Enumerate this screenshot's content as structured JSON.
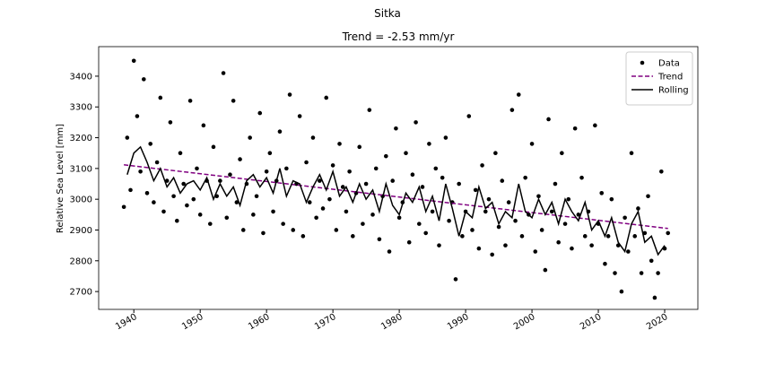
{
  "chart_data": {
    "type": "line",
    "suptitle": "Sitka",
    "title": "Trend = -2.53 mm/yr",
    "ylabel": "Relative Sea Level [mm]",
    "xlim": [
      1934.7,
      2025.0
    ],
    "ylim": [
      2642,
      3496
    ],
    "xticks": [
      1940,
      1950,
      1960,
      1970,
      1980,
      1990,
      2000,
      2010,
      2020
    ],
    "yticks": [
      2700,
      2800,
      2900,
      3000,
      3100,
      3200,
      3300,
      3400
    ],
    "legend": "upper right",
    "series": [
      {
        "name": "Data",
        "color": "#000000",
        "style": "markers",
        "x": [
          1938.5,
          1939,
          1939.5,
          1940,
          1940.5,
          1941,
          1941.5,
          1942,
          1942.5,
          1943,
          1943.5,
          1944,
          1944.5,
          1945,
          1945.5,
          1946,
          1946.5,
          1947,
          1947.5,
          1948,
          1948.5,
          1949,
          1949.5,
          1950,
          1950.5,
          1951,
          1951.5,
          1952,
          1952.5,
          1953,
          1953.5,
          1954,
          1954.5,
          1955,
          1955.5,
          1956,
          1956.5,
          1957,
          1957.5,
          1958,
          1958.5,
          1959,
          1959.5,
          1960,
          1960.5,
          1961,
          1961.5,
          1962,
          1962.5,
          1963,
          1963.5,
          1964,
          1964.5,
          1965,
          1965.5,
          1966,
          1966.5,
          1967,
          1967.5,
          1968,
          1968.5,
          1969,
          1969.5,
          1970,
          1970.5,
          1971,
          1971.5,
          1972,
          1972.5,
          1973,
          1973.5,
          1974,
          1974.5,
          1975,
          1975.5,
          1976,
          1976.5,
          1977,
          1977.5,
          1978,
          1978.5,
          1979,
          1979.5,
          1980,
          1980.5,
          1981,
          1981.5,
          1982,
          1982.5,
          1983,
          1983.5,
          1984,
          1984.5,
          1985,
          1985.5,
          1986,
          1986.5,
          1987,
          1987.5,
          1988,
          1988.5,
          1989,
          1989.5,
          1990,
          1990.5,
          1991,
          1991.5,
          1992,
          1992.5,
          1993,
          1993.5,
          1994,
          1994.5,
          1995,
          1995.5,
          1996,
          1996.5,
          1997,
          1997.5,
          1998,
          1998.5,
          1999,
          1999.5,
          2000,
          2000.5,
          2001,
          2001.5,
          2002,
          2002.5,
          2003,
          2003.5,
          2004,
          2004.5,
          2005,
          2005.5,
          2006,
          2006.5,
          2007,
          2007.5,
          2008,
          2008.5,
          2009,
          2009.5,
          2010,
          2010.5,
          2011,
          2011.5,
          2012,
          2012.5,
          2013,
          2013.5,
          2014,
          2014.5,
          2015,
          2015.5,
          2016,
          2016.5,
          2017,
          2017.5,
          2018,
          2018.5,
          2019,
          2019.5,
          2020,
          2020.5
        ],
        "values": [
          2975,
          3200,
          3030,
          3450,
          3270,
          3090,
          3390,
          3020,
          3180,
          2990,
          3120,
          3330,
          2960,
          3060,
          3250,
          3010,
          2930,
          3150,
          3050,
          2980,
          3320,
          3000,
          3100,
          2950,
          3240,
          3060,
          2920,
          3170,
          3010,
          3060,
          3410,
          2940,
          3080,
          3320,
          2990,
          3130,
          2900,
          3050,
          3200,
          2950,
          3010,
          3280,
          2890,
          3090,
          3150,
          2960,
          3060,
          3220,
          2920,
          3100,
          3340,
          2900,
          3050,
          3270,
          2880,
          3120,
          2990,
          3200,
          2940,
          3060,
          2970,
          3330,
          3000,
          3110,
          2900,
          3180,
          3040,
          2960,
          3090,
          2880,
          3020,
          3170,
          2920,
          3050,
          3290,
          2950,
          3100,
          2870,
          3010,
          3140,
          2830,
          3060,
          3230,
          2940,
          2990,
          3150,
          2860,
          3080,
          3250,
          2920,
          3040,
          2890,
          3180,
          2960,
          3100,
          2850,
          3070,
          3200,
          2930,
          2990,
          2740,
          3050,
          2880,
          2960,
          3270,
          2900,
          3030,
          2840,
          3110,
          2960,
          3000,
          2820,
          3150,
          2910,
          3060,
          2850,
          2990,
          3290,
          2930,
          3340,
          2880,
          3070,
          2950,
          3180,
          2830,
          3010,
          2900,
          2770,
          3260,
          2960,
          3050,
          2860,
          3150,
          2920,
          3000,
          2840,
          3230,
          2950,
          3070,
          2880,
          2960,
          2850,
          3240,
          2920,
          3020,
          2790,
          2880,
          3000,
          2760,
          2850,
          2700,
          2940,
          2830,
          3150,
          2880,
          2970,
          2760,
          2890,
          3010,
          2800,
          2680,
          2760,
          3090,
          2840,
          2890
        ]
      },
      {
        "name": "Trend",
        "color": "#800080",
        "style": "dashed",
        "x": [
          1938.5,
          2020.5
        ],
        "values": [
          3112,
          2905
        ]
      },
      {
        "name": "Rolling",
        "color": "#000000",
        "style": "solid",
        "x": [
          1939,
          1940,
          1941,
          1942,
          1943,
          1944,
          1945,
          1946,
          1947,
          1948,
          1949,
          1950,
          1951,
          1952,
          1953,
          1954,
          1955,
          1956,
          1957,
          1958,
          1959,
          1960,
          1961,
          1962,
          1963,
          1964,
          1965,
          1966,
          1967,
          1968,
          1969,
          1970,
          1971,
          1972,
          1973,
          1974,
          1975,
          1976,
          1977,
          1978,
          1979,
          1980,
          1981,
          1982,
          1983,
          1984,
          1985,
          1986,
          1987,
          1988,
          1989,
          1990,
          1991,
          1992,
          1993,
          1994,
          1995,
          1996,
          1997,
          1998,
          1999,
          2000,
          2001,
          2002,
          2003,
          2004,
          2005,
          2006,
          2007,
          2008,
          2009,
          2010,
          2011,
          2012,
          2013,
          2014,
          2015,
          2016,
          2017,
          2018,
          2019,
          2020
        ],
        "values": [
          3080,
          3150,
          3170,
          3120,
          3060,
          3100,
          3040,
          3070,
          3020,
          3050,
          3060,
          3030,
          3070,
          3000,
          3050,
          3010,
          3040,
          2980,
          3060,
          3080,
          3040,
          3070,
          3020,
          3100,
          3010,
          3060,
          3050,
          2990,
          3040,
          3080,
          3030,
          3090,
          3010,
          3040,
          2990,
          3050,
          3000,
          3030,
          2960,
          3050,
          2980,
          2950,
          3020,
          2990,
          3040,
          2960,
          3010,
          2930,
          3050,
          2970,
          2880,
          2960,
          2940,
          3040,
          2970,
          2990,
          2920,
          2960,
          2940,
          3050,
          2960,
          2940,
          3000,
          2950,
          2990,
          2920,
          3000,
          2960,
          2930,
          2990,
          2900,
          2930,
          2880,
          2940,
          2860,
          2830,
          2920,
          2960,
          2860,
          2880,
          2820,
          2850
        ]
      }
    ]
  }
}
